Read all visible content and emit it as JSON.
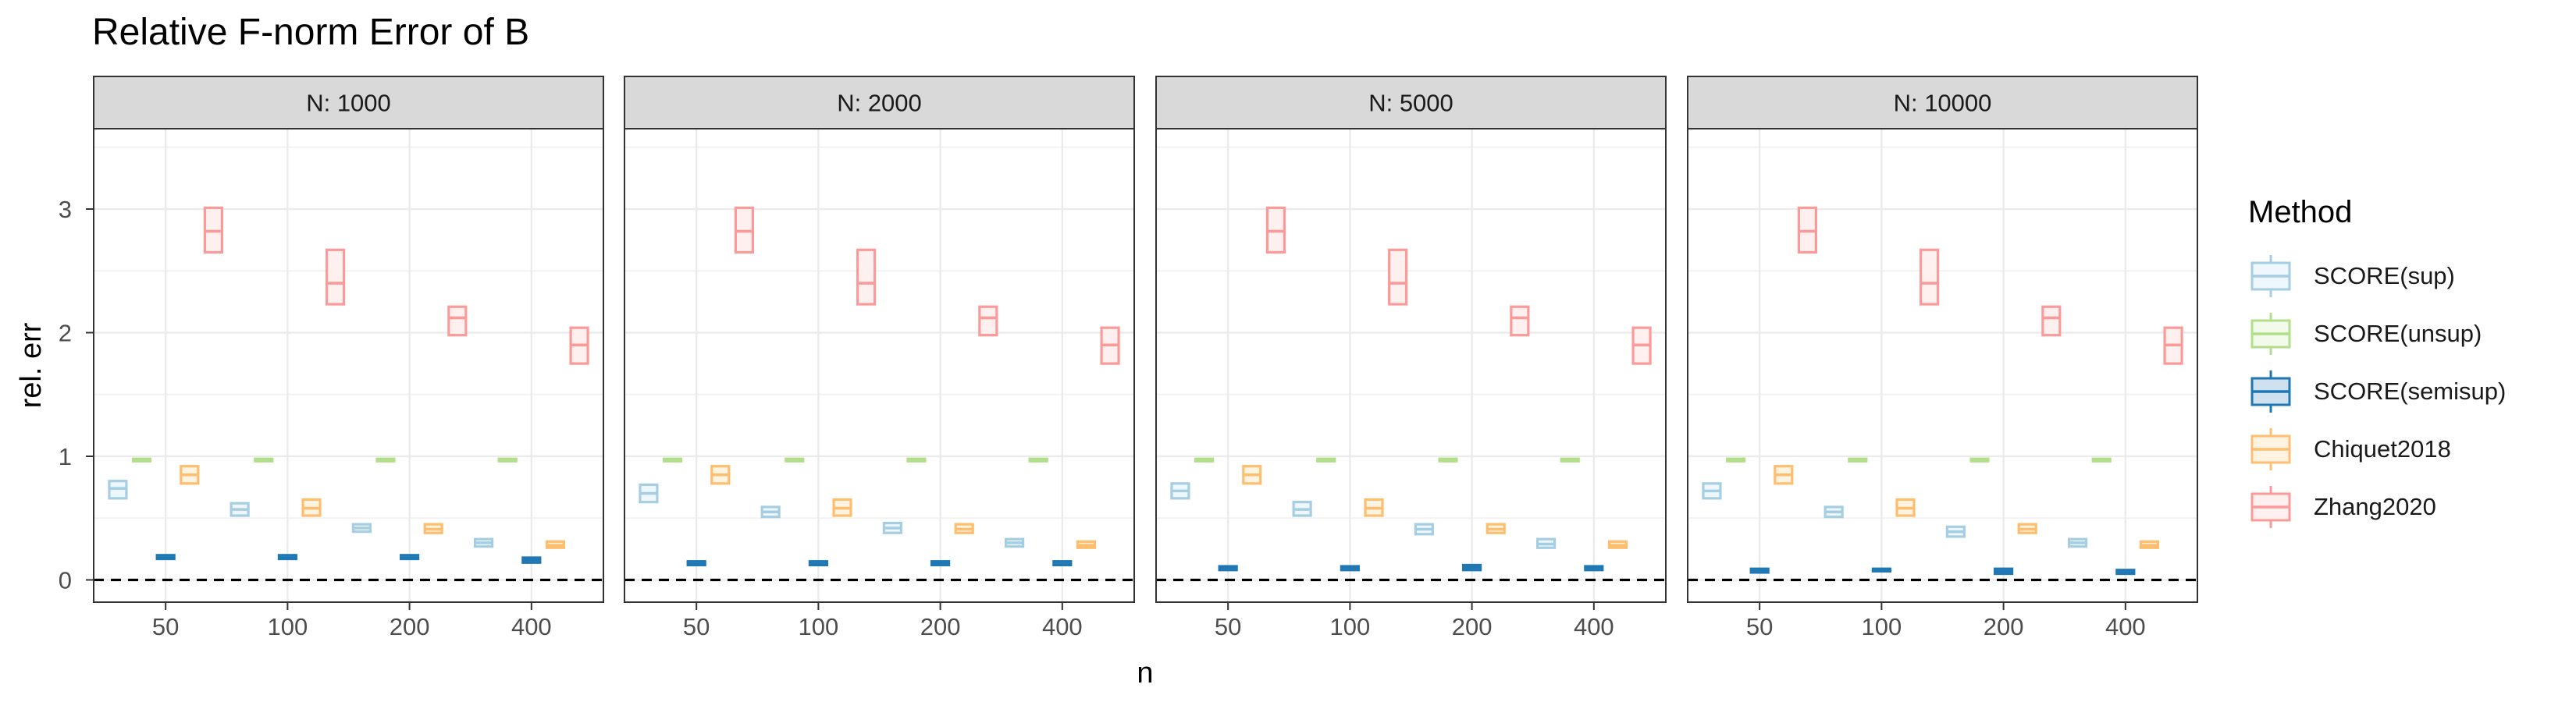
{
  "chart_data": {
    "type": "boxplot",
    "title": "Relative F-norm Error of B",
    "xlabel": "n",
    "ylabel": "rel. err",
    "categories": [
      "50",
      "100",
      "200",
      "400"
    ],
    "y_ticks": [
      "0",
      "1",
      "2",
      "3"
    ],
    "ylim": [
      -0.18,
      3.65
    ],
    "reference_line": {
      "y": 0,
      "style": "dashed",
      "color": "#000000"
    },
    "legend": {
      "title": "Method",
      "position": "right"
    },
    "series": [
      {
        "name": "SCORE(sup)",
        "color": "#a6cee3",
        "fill": "#eef7fb"
      },
      {
        "name": "SCORE(unsup)",
        "color": "#b2df8a",
        "fill": "#f2faeb"
      },
      {
        "name": "SCORE(semisup)",
        "color": "#1f78b4",
        "fill": "#cfe0ef"
      },
      {
        "name": "Chiquet2018",
        "color": "#fdbf6f",
        "fill": "#fff3e2"
      },
      {
        "name": "Zhang2020",
        "color": "#fb9a99",
        "fill": "#fff0f0"
      }
    ],
    "panels": [
      {
        "label": "N: 1000",
        "boxes": {
          "SCORE(sup)": [
            [
              0.66,
              0.74,
              0.8
            ],
            [
              0.52,
              0.57,
              0.62
            ],
            [
              0.39,
              0.42,
              0.45
            ],
            [
              0.27,
              0.3,
              0.33
            ]
          ],
          "SCORE(unsup)": [
            [
              0.96,
              0.97,
              0.98
            ],
            [
              0.96,
              0.97,
              0.98
            ],
            [
              0.96,
              0.97,
              0.98
            ],
            [
              0.96,
              0.97,
              0.98
            ]
          ],
          "SCORE(semisup)": [
            [
              0.17,
              0.18,
              0.2
            ],
            [
              0.17,
              0.18,
              0.2
            ],
            [
              0.17,
              0.18,
              0.2
            ],
            [
              0.14,
              0.16,
              0.18
            ]
          ],
          "Chiquet2018": [
            [
              0.78,
              0.85,
              0.92
            ],
            [
              0.52,
              0.58,
              0.65
            ],
            [
              0.38,
              0.41,
              0.45
            ],
            [
              0.26,
              0.28,
              0.31
            ]
          ],
          "Zhang2020": [
            [
              2.65,
              2.82,
              3.01
            ],
            [
              2.23,
              2.4,
              2.67
            ],
            [
              1.98,
              2.12,
              2.21
            ],
            [
              1.75,
              1.9,
              2.04
            ]
          ]
        }
      },
      {
        "label": "N: 2000",
        "boxes": {
          "SCORE(sup)": [
            [
              0.63,
              0.7,
              0.77
            ],
            [
              0.51,
              0.55,
              0.59
            ],
            [
              0.38,
              0.42,
              0.46
            ],
            [
              0.27,
              0.3,
              0.33
            ]
          ],
          "SCORE(unsup)": [
            [
              0.96,
              0.97,
              0.98
            ],
            [
              0.96,
              0.97,
              0.98
            ],
            [
              0.96,
              0.97,
              0.98
            ],
            [
              0.96,
              0.97,
              0.98
            ]
          ],
          "SCORE(semisup)": [
            [
              0.12,
              0.13,
              0.15
            ],
            [
              0.12,
              0.13,
              0.15
            ],
            [
              0.12,
              0.14,
              0.15
            ],
            [
              0.12,
              0.13,
              0.15
            ]
          ],
          "Chiquet2018": [
            [
              0.78,
              0.85,
              0.92
            ],
            [
              0.52,
              0.58,
              0.65
            ],
            [
              0.38,
              0.41,
              0.45
            ],
            [
              0.26,
              0.28,
              0.31
            ]
          ],
          "Zhang2020": [
            [
              2.65,
              2.82,
              3.01
            ],
            [
              2.23,
              2.4,
              2.67
            ],
            [
              1.98,
              2.12,
              2.21
            ],
            [
              1.75,
              1.9,
              2.04
            ]
          ]
        }
      },
      {
        "label": "N: 5000",
        "boxes": {
          "SCORE(sup)": [
            [
              0.66,
              0.72,
              0.78
            ],
            [
              0.52,
              0.57,
              0.63
            ],
            [
              0.37,
              0.41,
              0.45
            ],
            [
              0.26,
              0.29,
              0.33
            ]
          ],
          "SCORE(unsup)": [
            [
              0.96,
              0.97,
              0.98
            ],
            [
              0.96,
              0.97,
              0.98
            ],
            [
              0.96,
              0.97,
              0.98
            ],
            [
              0.96,
              0.97,
              0.98
            ]
          ],
          "SCORE(semisup)": [
            [
              0.08,
              0.1,
              0.11
            ],
            [
              0.08,
              0.1,
              0.11
            ],
            [
              0.08,
              0.1,
              0.12
            ],
            [
              0.08,
              0.1,
              0.11
            ]
          ],
          "Chiquet2018": [
            [
              0.78,
              0.85,
              0.92
            ],
            [
              0.52,
              0.58,
              0.65
            ],
            [
              0.38,
              0.41,
              0.45
            ],
            [
              0.26,
              0.28,
              0.31
            ]
          ],
          "Zhang2020": [
            [
              2.65,
              2.82,
              3.01
            ],
            [
              2.23,
              2.4,
              2.67
            ],
            [
              1.98,
              2.12,
              2.21
            ],
            [
              1.75,
              1.9,
              2.04
            ]
          ]
        }
      },
      {
        "label": "N: 10000",
        "boxes": {
          "SCORE(sup)": [
            [
              0.66,
              0.72,
              0.78
            ],
            [
              0.51,
              0.55,
              0.59
            ],
            [
              0.35,
              0.39,
              0.43
            ],
            [
              0.27,
              0.3,
              0.33
            ]
          ],
          "SCORE(unsup)": [
            [
              0.96,
              0.97,
              0.98
            ],
            [
              0.96,
              0.97,
              0.98
            ],
            [
              0.96,
              0.97,
              0.98
            ],
            [
              0.96,
              0.97,
              0.98
            ]
          ],
          "SCORE(semisup)": [
            [
              0.06,
              0.07,
              0.09
            ],
            [
              0.07,
              0.08,
              0.09
            ],
            [
              0.05,
              0.07,
              0.09
            ],
            [
              0.05,
              0.06,
              0.08
            ]
          ],
          "Chiquet2018": [
            [
              0.78,
              0.85,
              0.92
            ],
            [
              0.52,
              0.58,
              0.65
            ],
            [
              0.38,
              0.41,
              0.45
            ],
            [
              0.26,
              0.28,
              0.31
            ]
          ],
          "Zhang2020": [
            [
              2.65,
              2.82,
              3.01
            ],
            [
              2.23,
              2.4,
              2.67
            ],
            [
              1.98,
              2.12,
              2.21
            ],
            [
              1.75,
              1.9,
              2.04
            ]
          ]
        }
      }
    ]
  }
}
